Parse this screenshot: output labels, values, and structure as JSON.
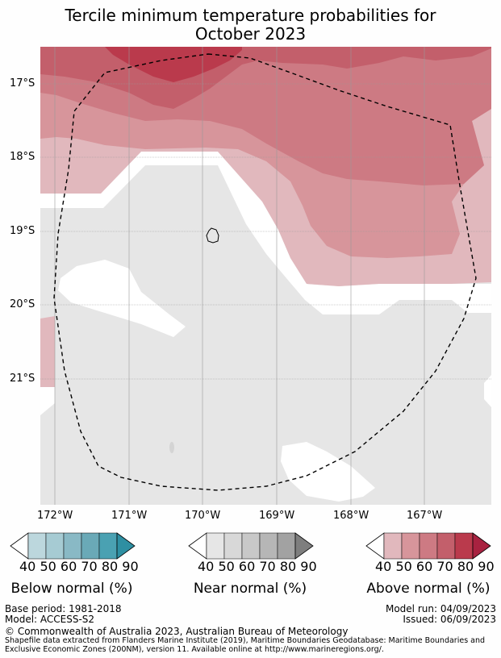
{
  "title_line1": "Tercile minimum temperature probabilities for",
  "title_line2": "October 2023",
  "lat_labels": [
    "17°S",
    "18°S",
    "19°S",
    "20°S",
    "21°S"
  ],
  "lon_labels": [
    "172°W",
    "171°W",
    "170°W",
    "169°W",
    "168°W",
    "167°W"
  ],
  "legends": {
    "below": {
      "title": "Below normal (%)",
      "ticks": [
        "40",
        "50",
        "60",
        "70",
        "80",
        "90"
      ],
      "colors": [
        "#ffffff",
        "#bcd7dd",
        "#a6cbd3",
        "#89b9c5",
        "#6aa9b7",
        "#4aa1b2",
        "#2e8fa2"
      ]
    },
    "near": {
      "title": "Near normal (%)",
      "ticks": [
        "40",
        "50",
        "60",
        "70",
        "80",
        "90"
      ],
      "colors": [
        "#ffffff",
        "#e6e6e6",
        "#d8d8d8",
        "#c8c8c8",
        "#b6b6b6",
        "#a2a2a2",
        "#7e7e7e"
      ]
    },
    "above": {
      "title": "Above normal (%)",
      "ticks": [
        "40",
        "50",
        "60",
        "70",
        "80",
        "90"
      ],
      "colors": [
        "#ffffff",
        "#e1b8bd",
        "#d7959b",
        "#cd7a83",
        "#c35f6b",
        "#ba3a4c",
        "#a82240"
      ]
    }
  },
  "base_period": "Base period: 1981-2018",
  "model": "Model: ACCESS-S2",
  "model_run": "Model run: 04/09/2023",
  "issued": "Issued: 06/09/2023",
  "copyright": "© Commonwealth of Australia 2023, Australian Bureau of Meteorology",
  "shapefile_line1": "Shapefile data extracted from Flanders Marine Institute (2019), Maritime Boundaries Geodatabase: Maritime Boundaries and",
  "shapefile_line2": "Exclusive Economic Zones (200NM), version 11. Available online at http://www.marineregions.org/."
}
